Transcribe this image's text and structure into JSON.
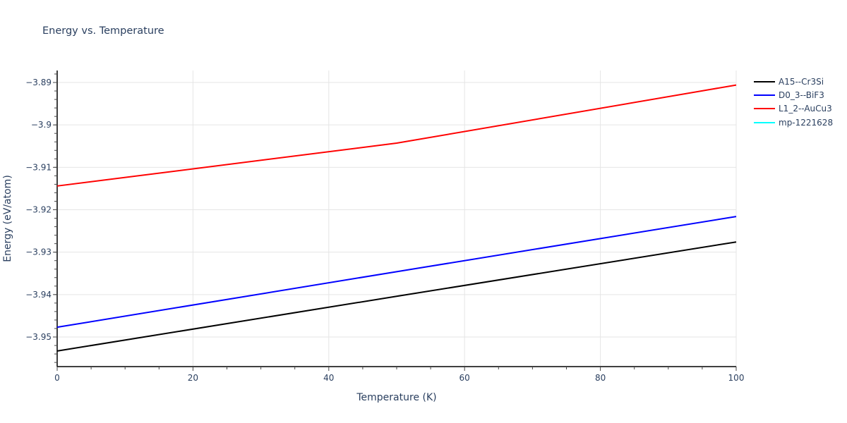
{
  "chart_data": {
    "type": "line",
    "title": "Energy vs. Temperature",
    "xlabel": "Temperature (K)",
    "ylabel": "Energy (eV/atom)",
    "xlim": [
      0,
      100
    ],
    "ylim": [
      -3.9567,
      -3.8872
    ],
    "x_ticks": [
      0,
      20,
      40,
      60,
      80,
      100
    ],
    "y_ticks": [
      -3.95,
      -3.94,
      -3.93,
      -3.92,
      -3.91,
      -3.9,
      -3.89
    ],
    "y_tick_labels": [
      "−3.95",
      "−3.94",
      "−3.93",
      "−3.92",
      "−3.91",
      "−3.9",
      "−3.89"
    ],
    "grid": true,
    "legend_position": "right",
    "series": [
      {
        "name": "A15--Cr3Si",
        "color": "#000000",
        "x": [
          0,
          50,
          100
        ],
        "values": [
          -3.9533,
          -3.9404,
          -3.9276
        ]
      },
      {
        "name": "D0_3--BiF3",
        "color": "#0000ff",
        "x": [
          0,
          50,
          100
        ],
        "values": [
          -3.9477,
          -3.9346,
          -3.9216
        ]
      },
      {
        "name": "L1_2--AuCu3",
        "color": "#ff0000",
        "x": [
          0,
          50,
          100
        ],
        "values": [
          -3.9144,
          -3.9043,
          -3.8906
        ]
      },
      {
        "name": "mp-1221628",
        "color": "#00ffff",
        "x": [],
        "values": []
      }
    ]
  }
}
